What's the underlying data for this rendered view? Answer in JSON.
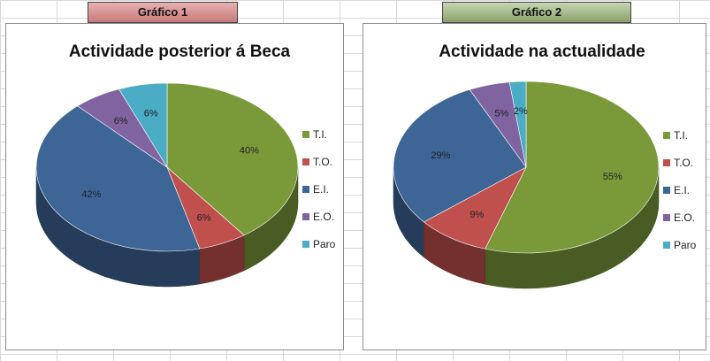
{
  "headers": {
    "chart1": "Gráfico 1",
    "chart2": "Gráfico 2"
  },
  "chart_data": [
    {
      "type": "pie",
      "title": "Actividade posterior á Beca",
      "categories": [
        "T.I.",
        "T.O.",
        "E.I.",
        "E.O.",
        "Paro"
      ],
      "values": [
        40,
        6,
        42,
        6,
        6
      ],
      "labels": [
        "40%",
        "6%",
        "42%",
        "6%",
        "6%"
      ],
      "colors": [
        "#7a9a3a",
        "#c0504d",
        "#3d6596",
        "#8064a2",
        "#4bacc6"
      ],
      "legend_position": "right"
    },
    {
      "type": "pie",
      "title": "Actividade na actualidade",
      "categories": [
        "T.I.",
        "T.O.",
        "E.I.",
        "E.O.",
        "Paro"
      ],
      "values": [
        55,
        9,
        29,
        5,
        2
      ],
      "labels": [
        "55%",
        "9%",
        "29%",
        "5%",
        "2%"
      ],
      "colors": [
        "#7a9a3a",
        "#c0504d",
        "#3d6596",
        "#8064a2",
        "#4bacc6"
      ],
      "legend_position": "right"
    }
  ]
}
